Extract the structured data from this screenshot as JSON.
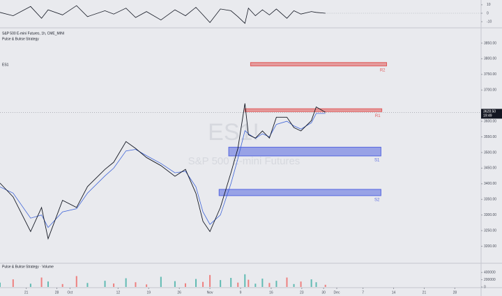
{
  "chart_data": {
    "type": "line",
    "title": "S&P 500 E-mini Futures, 1h, CME_MINI",
    "indicator": "Pulse & Bulrse Strategy",
    "symbol_tag": "ES1",
    "watermark_symbol": "ES1!",
    "watermark_name": "S&P 500 E-mini Futures",
    "x": [
      -6,
      -3,
      1,
      3.5,
      5,
      8.3,
      11.5,
      14,
      18,
      20,
      22.8,
      25,
      27.5,
      30.8,
      34,
      36.4,
      38.8,
      40.4,
      42,
      44.4,
      46.8,
      48.4,
      50,
      50.8,
      52.4,
      54,
      55.6,
      57.2,
      59.6,
      61.2,
      62.8,
      65.2,
      66.3,
      68.4
    ],
    "series": [
      {
        "color": "#131722",
        "values": [
          3402,
          3358,
          3247,
          3324,
          3224,
          3347,
          3324,
          3391,
          3446,
          3469,
          3535,
          3513,
          3484,
          3458,
          3424,
          3446,
          3369,
          3280,
          3247,
          3324,
          3435,
          3513,
          3657,
          3557,
          3546,
          3569,
          3546,
          3613,
          3613,
          3580,
          3569,
          3602,
          3646,
          3628.5
        ]
      },
      {
        "color": "#3d63d8",
        "values": [
          3390,
          3370,
          3290,
          3300,
          3260,
          3310,
          3320,
          3370,
          3425,
          3450,
          3505,
          3510,
          3490,
          3465,
          3435,
          3440,
          3390,
          3310,
          3270,
          3300,
          3400,
          3480,
          3570,
          3560,
          3545,
          3560,
          3550,
          3590,
          3600,
          3585,
          3575,
          3595,
          3625,
          3625
        ]
      }
    ],
    "xlim": [
      -6,
      104
    ],
    "ylim": [
      3150,
      3890
    ],
    "xticks": [
      {
        "value": 0,
        "label": "21"
      },
      {
        "value": 7,
        "label": "28"
      },
      {
        "value": 10,
        "label": "Oct"
      },
      {
        "value": 21,
        "label": "12"
      },
      {
        "value": 28,
        "label": "19"
      },
      {
        "value": 35,
        "label": "26"
      },
      {
        "value": 42,
        "label": "Nov"
      },
      {
        "value": 49,
        "label": "9"
      },
      {
        "value": 56,
        "label": "16"
      },
      {
        "value": 63,
        "label": "23"
      },
      {
        "value": 68,
        "label": "30"
      },
      {
        "value": 71,
        "label": "Dec"
      },
      {
        "value": 77,
        "label": "7"
      },
      {
        "value": 84,
        "label": "14"
      },
      {
        "value": 91,
        "label": "21"
      },
      {
        "value": 98,
        "label": "28"
      }
    ],
    "yticks": [
      {
        "value": 3200,
        "label": "3200.00"
      },
      {
        "value": 3250,
        "label": "3250.00"
      },
      {
        "value": 3300,
        "label": "3300.00"
      },
      {
        "value": 3350,
        "label": "3350.00"
      },
      {
        "value": 3400,
        "label": "3400.00"
      },
      {
        "value": 3450,
        "label": "3450.00"
      },
      {
        "value": 3500,
        "label": "3500.00"
      },
      {
        "value": 3550,
        "label": "3550.00"
      },
      {
        "value": 3600,
        "label": "3600.00"
      },
      {
        "value": 3700,
        "label": "3700.00"
      },
      {
        "value": 3750,
        "label": "3750.00"
      },
      {
        "value": 3800,
        "label": "3800.00"
      },
      {
        "value": 3850,
        "label": "3850.00"
      }
    ],
    "zones": [
      {
        "label": "R2",
        "color": "#e05a5a",
        "x": [
          51.3,
          82.4
        ],
        "y": [
          3777,
          3788
        ]
      },
      {
        "label": "R1",
        "color": "#e05a5a",
        "x": [
          50,
          81.3
        ],
        "y": [
          3631,
          3640
        ]
      },
      {
        "label": "S1",
        "color": "#5566e0",
        "x": [
          46.3,
          81.1
        ],
        "y": [
          3489,
          3517
        ]
      },
      {
        "label": "S2",
        "color": "#5566e0",
        "x": [
          44.1,
          81.1
        ],
        "y": [
          3362,
          3382
        ]
      }
    ],
    "price_label": {
      "value": 3628.5,
      "label": "3628.50"
    },
    "time_label": "19:49",
    "oscillator": {
      "color": "#131722",
      "values": [
        1,
        -3,
        8,
        -6,
        4,
        -2,
        9,
        -4,
        3,
        -1,
        6,
        -5,
        2,
        -8,
        4,
        -3,
        7,
        -2,
        -11,
        5,
        3,
        -4,
        -12,
        6,
        -3,
        4,
        -2,
        5,
        -6,
        3,
        -1,
        2,
        1,
        0
      ],
      "ylim": [
        -14,
        14
      ],
      "yticks": [
        10,
        0,
        -10
      ]
    },
    "volume": {
      "title": "Pulse & Bulrse Strategy · Volume",
      "values": [
        120000,
        210000,
        90000,
        260000,
        150000,
        80000,
        300000,
        110000,
        170000,
        95000,
        240000,
        130000,
        70000,
        280000,
        160000,
        100000,
        220000,
        140000,
        330000,
        190000,
        250000,
        120000,
        350000,
        200000,
        90000,
        230000,
        110000,
        170000,
        260000,
        80000,
        150000,
        210000,
        130000,
        60000
      ],
      "colors": [
        "#26a69a",
        "#ef5350",
        "#26a69a",
        "#ef5350",
        "#26a69a",
        "#ef5350",
        "#ef5350",
        "#26a69a",
        "#26a69a",
        "#ef5350",
        "#26a69a",
        "#ef5350",
        "#ef5350",
        "#26a69a",
        "#26a69a",
        "#ef5350",
        "#26a69a",
        "#ef5350",
        "#ef5350",
        "#26a69a",
        "#26a69a",
        "#ef5350",
        "#26a69a",
        "#ef5350",
        "#26a69a",
        "#26a69a",
        "#ef5350",
        "#26a69a",
        "#ef5350",
        "#26a69a",
        "#ef5350",
        "#26a69a",
        "#26a69a",
        "#ef5350"
      ],
      "ylim": [
        0,
        500000
      ],
      "yticks": [
        0,
        200000,
        400000
      ]
    }
  }
}
